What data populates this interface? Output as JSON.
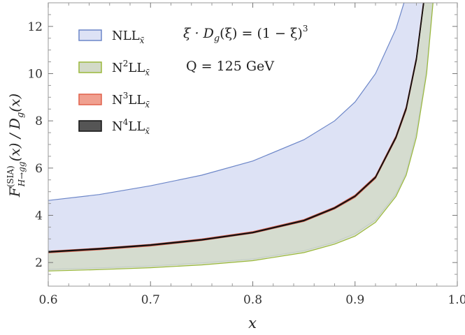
{
  "chart_data": {
    "type": "area",
    "title": "",
    "xlabel": "x",
    "ylabel_parts": [
      "F",
      "(SIA)",
      "H→gg",
      "(x) / D",
      "g",
      "(x)"
    ],
    "xlim": [
      0.6,
      1.0
    ],
    "ylim": [
      1.0,
      13.0
    ],
    "x_ticks": [
      "0.6",
      "0.7",
      "0.8",
      "0.9",
      "1.0"
    ],
    "y_ticks": [
      "2",
      "4",
      "6",
      "8",
      "10",
      "12"
    ],
    "grid": false,
    "legend_position": "top-left",
    "annotations": [
      "ξ · D",
      "g",
      "(ξ) = (1 − ξ)",
      "3",
      "Q = 125 GeV"
    ],
    "x": [
      0.6,
      0.65,
      0.7,
      0.75,
      0.8,
      0.85,
      0.88,
      0.9,
      0.92,
      0.94,
      0.95,
      0.96,
      0.97,
      0.98,
      0.99
    ],
    "series": [
      {
        "name_parts": [
          "NLL",
          "x̄"
        ],
        "color": "#6c86c8",
        "fill": "#dde2f5",
        "upper": [
          4.63,
          4.88,
          5.25,
          5.7,
          6.3,
          7.2,
          8.0,
          8.8,
          10.0,
          11.9,
          13.3,
          null,
          null,
          null,
          null
        ],
        "lower": [
          1.71,
          1.77,
          1.85,
          1.98,
          2.15,
          2.5,
          2.86,
          3.22,
          3.8,
          4.9,
          5.8,
          7.5,
          10.2,
          15.0,
          25.0
        ]
      },
      {
        "name_parts": [
          "N",
          "2",
          "LL",
          "x̄"
        ],
        "color": "#9ab83a",
        "fill": "#d3dac8",
        "upper": [
          2.44,
          2.57,
          2.73,
          2.95,
          3.26,
          3.77,
          4.3,
          4.8,
          5.6,
          7.3,
          8.5,
          10.6,
          14.0,
          null,
          null
        ],
        "lower": [
          1.64,
          1.7,
          1.78,
          1.9,
          2.08,
          2.42,
          2.78,
          3.12,
          3.7,
          4.8,
          5.7,
          7.3,
          10.0,
          14.8,
          24.5
        ]
      },
      {
        "name_parts": [
          "N",
          "3",
          "LL",
          "x̄"
        ],
        "color": "#e0604a",
        "fill": "#f0a090",
        "upper": [
          2.48,
          2.61,
          2.77,
          3.0,
          3.31,
          3.82,
          4.35,
          4.86,
          5.66,
          7.37,
          8.6,
          10.7,
          14.1,
          null,
          null
        ],
        "lower": [
          2.41,
          2.54,
          2.7,
          2.93,
          3.24,
          3.74,
          4.27,
          4.76,
          5.56,
          7.25,
          8.45,
          10.55,
          13.9,
          null,
          null
        ]
      },
      {
        "name_parts": [
          "N",
          "4",
          "LL",
          "x̄"
        ],
        "color": "#111111",
        "fill": "#555555",
        "upper": [
          2.46,
          2.59,
          2.75,
          2.97,
          3.28,
          3.79,
          4.32,
          4.82,
          5.62,
          7.32,
          8.54,
          10.64,
          14.0,
          null,
          null
        ],
        "lower": [
          2.44,
          2.57,
          2.73,
          2.95,
          3.26,
          3.77,
          4.3,
          4.8,
          5.6,
          7.29,
          8.51,
          10.6,
          13.96,
          null,
          null
        ]
      }
    ]
  }
}
